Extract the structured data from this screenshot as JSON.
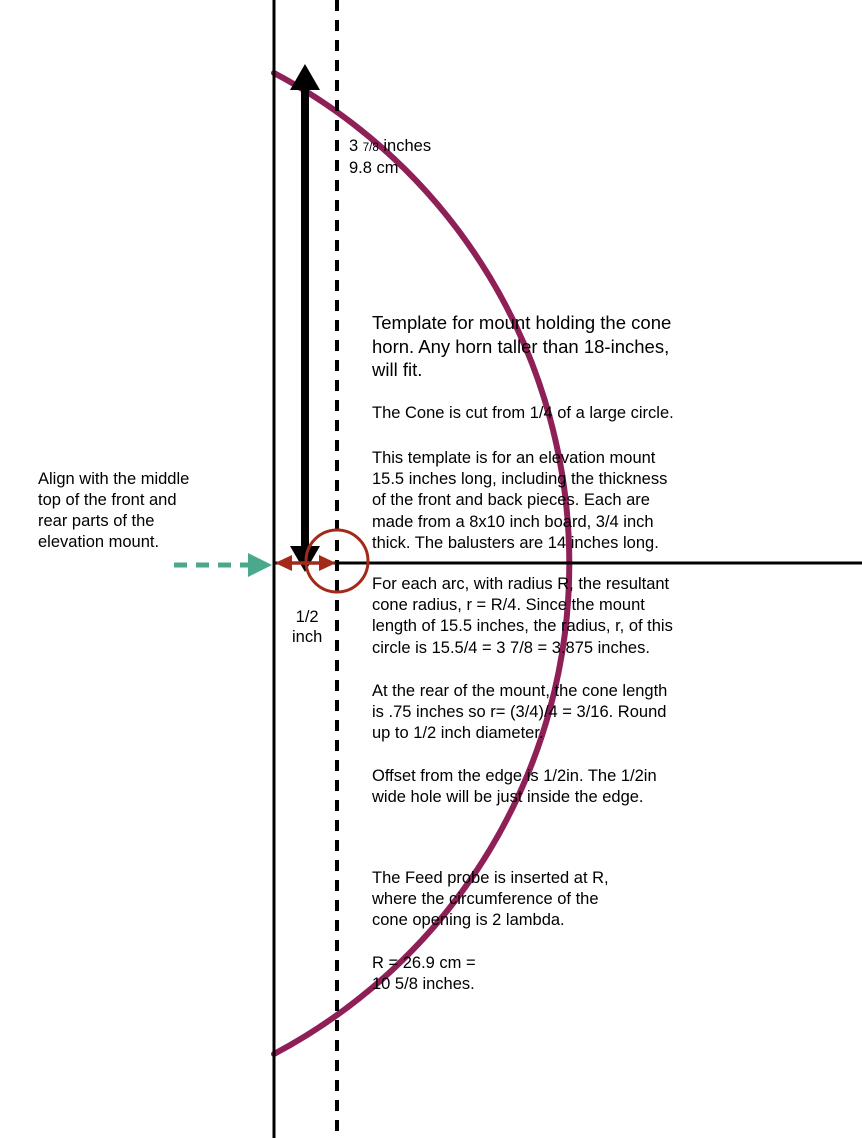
{
  "colors": {
    "arc": "#8f1f57",
    "hole": "#a32a18",
    "offset_arrow": "#a32a18",
    "align_arrow": "#4aa88c",
    "axis": "#000000"
  },
  "dimension_label": {
    "whole": "3",
    "fraction": "7/8",
    "unit": "inches",
    "cm": "9.8 cm"
  },
  "offset_label": [
    "1/2",
    "inch"
  ],
  "align_note": [
    "Align with the middle",
    "top of the front and",
    "rear parts of the",
    "elevation mount."
  ],
  "heading": [
    "Template for mount holding the cone",
    "horn.  Any horn taller than 18-inches,",
    "will fit."
  ],
  "paragraphs": [
    {
      "lines": [
        "The Cone is cut from 1/4 of a large circle."
      ]
    },
    {
      "lines": [
        "This template is for an elevation mount",
        "15.5 inches long, including the thickness",
        "of the front and back pieces.  Each are",
        "made from a 8x10 inch board, 3/4 inch",
        "thick. The balusters are 14 inches long."
      ]
    },
    {
      "lines": [
        "For each arc, with radius R, the resultant",
        "cone radius, r = R/4.   Since the mount",
        "length of 15.5 inches, the radius, r,  of this",
        "circle is 15.5/4 = 3 7/8 = 3.875 inches."
      ]
    },
    {
      "lines": [
        "At the rear of the mount, the cone length",
        "is .75 inches so r= (3/4)/4 = 3/16.  Round",
        "up to 1/2 inch diameter."
      ]
    },
    {
      "lines": [
        "Offset from the edge is 1/2in. The 1/2in",
        "wide hole will be just inside the edge."
      ]
    },
    {
      "lines": [
        "The Feed probe is inserted at R,",
        "where the circumference of the",
        "cone opening is 2 lambda."
      ]
    },
    {
      "lines": [
        "R = 26.9 cm =",
        "10 5/8 inches."
      ]
    }
  ]
}
